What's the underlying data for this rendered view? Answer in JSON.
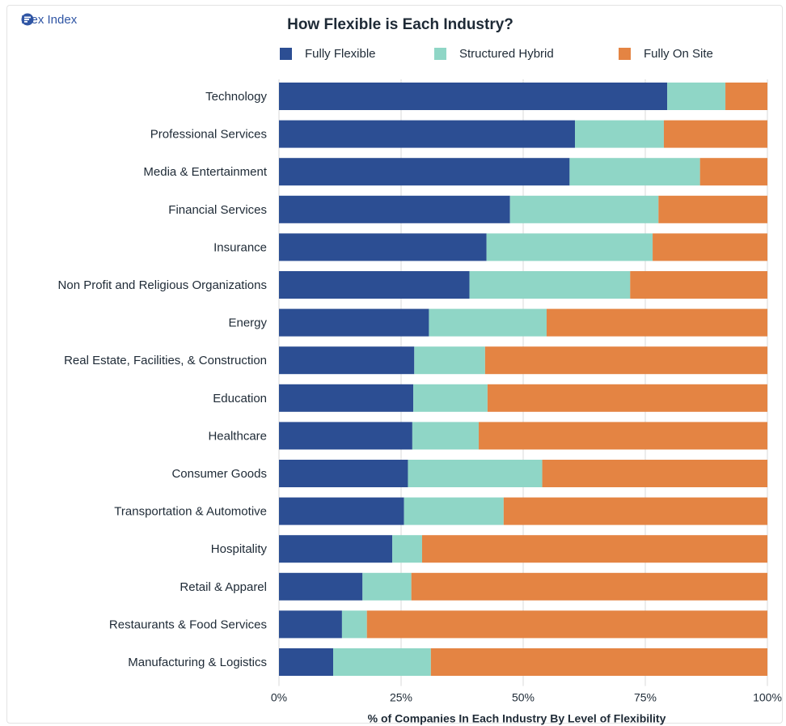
{
  "brand": {
    "name": "Flex Index",
    "icon": "flex-index-logo-icon",
    "color": "#2f55a4"
  },
  "chart_data": {
    "type": "bar",
    "orientation": "horizontal",
    "stacked": true,
    "title": "How Flexible is Each Industry?",
    "xlabel": "% of Companies In Each Industry By Level of Flexibility",
    "ylabel": "",
    "xlim": [
      0,
      100
    ],
    "xticks": [
      "0%",
      "25%",
      "50%",
      "75%",
      "100%"
    ],
    "grid": true,
    "legend_position": "top",
    "categories": [
      "Technology",
      "Professional Services",
      "Media & Entertainment",
      "Financial Services",
      "Insurance",
      "Non Profit and Religious Organizations",
      "Energy",
      "Real Estate, Facilities, & Construction",
      "Education",
      "Healthcare",
      "Consumer Goods",
      "Transportation & Automotive",
      "Hospitality",
      "Retail & Apparel",
      "Restaurants & Food Services",
      "Manufacturing & Logistics"
    ],
    "series": [
      {
        "name": "Fully Flexible",
        "color": "#2c4e93",
        "values": [
          79.5,
          60.6,
          59.5,
          47.3,
          42.5,
          39.0,
          30.7,
          27.7,
          27.5,
          27.3,
          26.4,
          25.6,
          23.2,
          17.1,
          12.9,
          11.1
        ]
      },
      {
        "name": "Structured Hybrid",
        "color": "#8fd6c6",
        "values": [
          11.9,
          18.2,
          26.7,
          30.4,
          34.0,
          32.9,
          24.1,
          14.5,
          15.2,
          13.6,
          27.5,
          20.4,
          6.1,
          10.0,
          5.1,
          20.0
        ]
      },
      {
        "name": "Fully On Site",
        "color": "#e48443",
        "values": [
          8.6,
          21.2,
          13.8,
          22.3,
          23.5,
          28.1,
          45.2,
          57.8,
          57.3,
          59.1,
          46.1,
          54.0,
          70.7,
          72.9,
          82.0,
          68.9
        ]
      }
    ]
  }
}
